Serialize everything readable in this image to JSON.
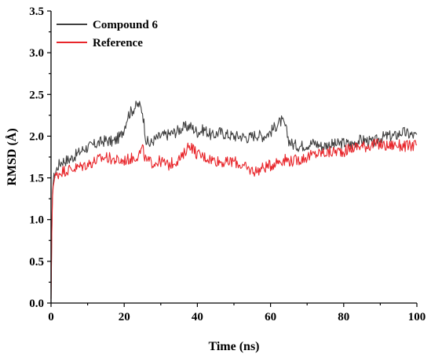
{
  "chart_data": {
    "type": "line",
    "xlabel": "Time (ns)",
    "ylabel": "RMSD (Å)",
    "xlim": [
      0,
      100
    ],
    "ylim": [
      0,
      3.5
    ],
    "xticks": [
      "0",
      "20",
      "40",
      "60",
      "80",
      "100"
    ],
    "yticks": [
      "0.0",
      "0.5",
      "1.0",
      "1.5",
      "2.0",
      "2.5",
      "3.0",
      "3.5"
    ],
    "grid": false,
    "legend_position": "top-left",
    "series": [
      {
        "name": "Compound 6",
        "color": "#404040",
        "x": [
          0,
          0.3,
          0.6,
          1,
          2,
          3,
          5,
          7,
          9,
          11,
          13,
          15,
          17,
          19,
          20,
          21,
          22,
          23,
          24,
          25,
          26,
          27,
          28,
          30,
          32,
          34,
          36,
          38,
          40,
          42,
          44,
          46,
          48,
          50,
          52,
          54,
          56,
          58,
          60,
          62,
          63,
          64,
          65,
          66,
          68,
          70,
          72,
          74,
          76,
          78,
          80,
          82,
          84,
          86,
          88,
          90,
          92,
          94,
          96,
          98,
          100
        ],
        "y": [
          0.05,
          1.25,
          1.45,
          1.55,
          1.65,
          1.7,
          1.72,
          1.78,
          1.85,
          1.88,
          1.92,
          1.95,
          1.93,
          2.0,
          2.1,
          2.25,
          2.3,
          2.35,
          2.38,
          2.3,
          1.95,
          1.9,
          1.95,
          2.0,
          2.02,
          2.05,
          2.1,
          2.12,
          2.05,
          2.08,
          2.0,
          2.05,
          2.02,
          2.0,
          2.0,
          1.98,
          2.02,
          2.0,
          2.05,
          2.15,
          2.18,
          2.12,
          1.95,
          1.9,
          1.88,
          1.9,
          1.92,
          1.88,
          1.9,
          1.9,
          1.92,
          1.9,
          1.95,
          1.95,
          1.92,
          1.98,
          2.0,
          2.0,
          2.05,
          2.02,
          2.0
        ]
      },
      {
        "name": "Reference",
        "color": "#e8262b",
        "x": [
          0,
          0.3,
          0.6,
          1,
          2,
          3,
          5,
          7,
          9,
          11,
          13,
          15,
          17,
          19,
          21,
          23,
          24,
          25,
          26,
          28,
          30,
          32,
          34,
          36,
          37,
          38,
          40,
          42,
          44,
          46,
          48,
          50,
          52,
          54,
          56,
          58,
          60,
          62,
          64,
          66,
          68,
          70,
          72,
          74,
          76,
          78,
          80,
          82,
          84,
          86,
          88,
          90,
          92,
          94,
          96,
          98,
          100
        ],
        "y": [
          0.05,
          1.2,
          1.4,
          1.5,
          1.55,
          1.58,
          1.6,
          1.62,
          1.65,
          1.68,
          1.72,
          1.75,
          1.72,
          1.7,
          1.72,
          1.75,
          1.78,
          1.85,
          1.7,
          1.68,
          1.7,
          1.65,
          1.7,
          1.75,
          1.85,
          1.9,
          1.78,
          1.75,
          1.72,
          1.7,
          1.68,
          1.7,
          1.65,
          1.6,
          1.58,
          1.62,
          1.65,
          1.7,
          1.72,
          1.7,
          1.72,
          1.75,
          1.78,
          1.8,
          1.8,
          1.82,
          1.82,
          1.85,
          1.88,
          1.88,
          1.9,
          1.9,
          1.88,
          1.9,
          1.88,
          1.88,
          1.9
        ]
      }
    ]
  }
}
